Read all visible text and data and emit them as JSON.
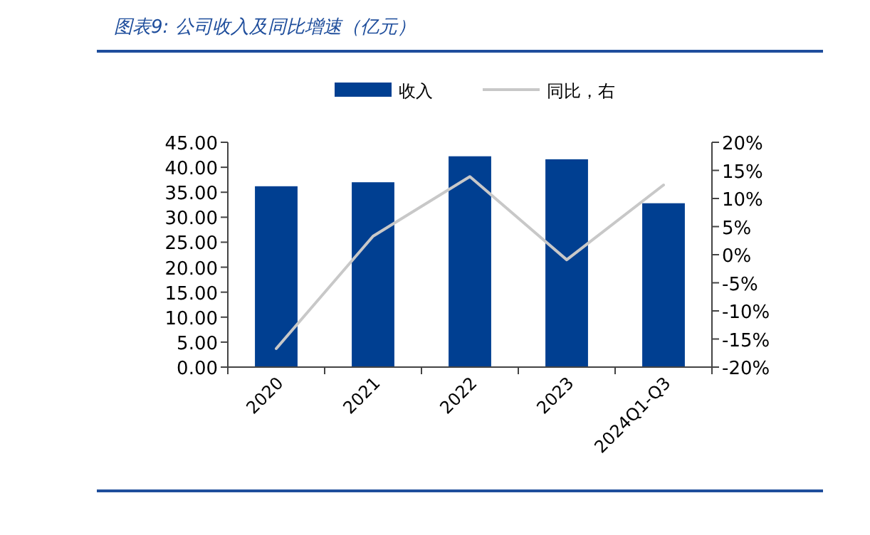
{
  "chart_data": {
    "type": "bar",
    "title": "图表9:  公司收入及同比增速（亿元）",
    "categories": [
      "2020",
      "2021",
      "2022",
      "2023",
      "2024Q1-Q3"
    ],
    "series": [
      {
        "name": "收入",
        "color": "#003f91",
        "values": [
          36.2,
          37.0,
          42.2,
          41.6,
          32.8
        ]
      },
      {
        "name": "同比，右",
        "type": "line",
        "axis": "y2",
        "color": "#c8c8c8",
        "values": [
          -16.7,
          3.3,
          13.9,
          -0.9,
          12.4
        ]
      }
    ],
    "ylim": [
      0,
      45
    ],
    "yticks": [
      {
        "value": 0,
        "label": "0.00"
      },
      {
        "value": 5,
        "label": "5.00"
      },
      {
        "value": 10,
        "label": "10.00"
      },
      {
        "value": 15,
        "label": "15.00"
      },
      {
        "value": 20,
        "label": "20.00"
      },
      {
        "value": 25,
        "label": "25.00"
      },
      {
        "value": 30,
        "label": "30.00"
      },
      {
        "value": 35,
        "label": "35.00"
      },
      {
        "value": 40,
        "label": "40.00"
      },
      {
        "value": 45,
        "label": "45.00"
      }
    ],
    "y2lim": [
      -20,
      20
    ],
    "y2ticks": [
      {
        "value": -20,
        "label": "-20%"
      },
      {
        "value": -15,
        "label": "-15%"
      },
      {
        "value": -10,
        "label": "-10%"
      },
      {
        "value": -5,
        "label": "-5%"
      },
      {
        "value": 0,
        "label": "0%"
      },
      {
        "value": 5,
        "label": "5%"
      },
      {
        "value": 10,
        "label": "10%"
      },
      {
        "value": 15,
        "label": "15%"
      },
      {
        "value": 20,
        "label": "20%"
      }
    ],
    "legend": "top",
    "grid": false,
    "marker": "none",
    "line_style": "solid"
  }
}
